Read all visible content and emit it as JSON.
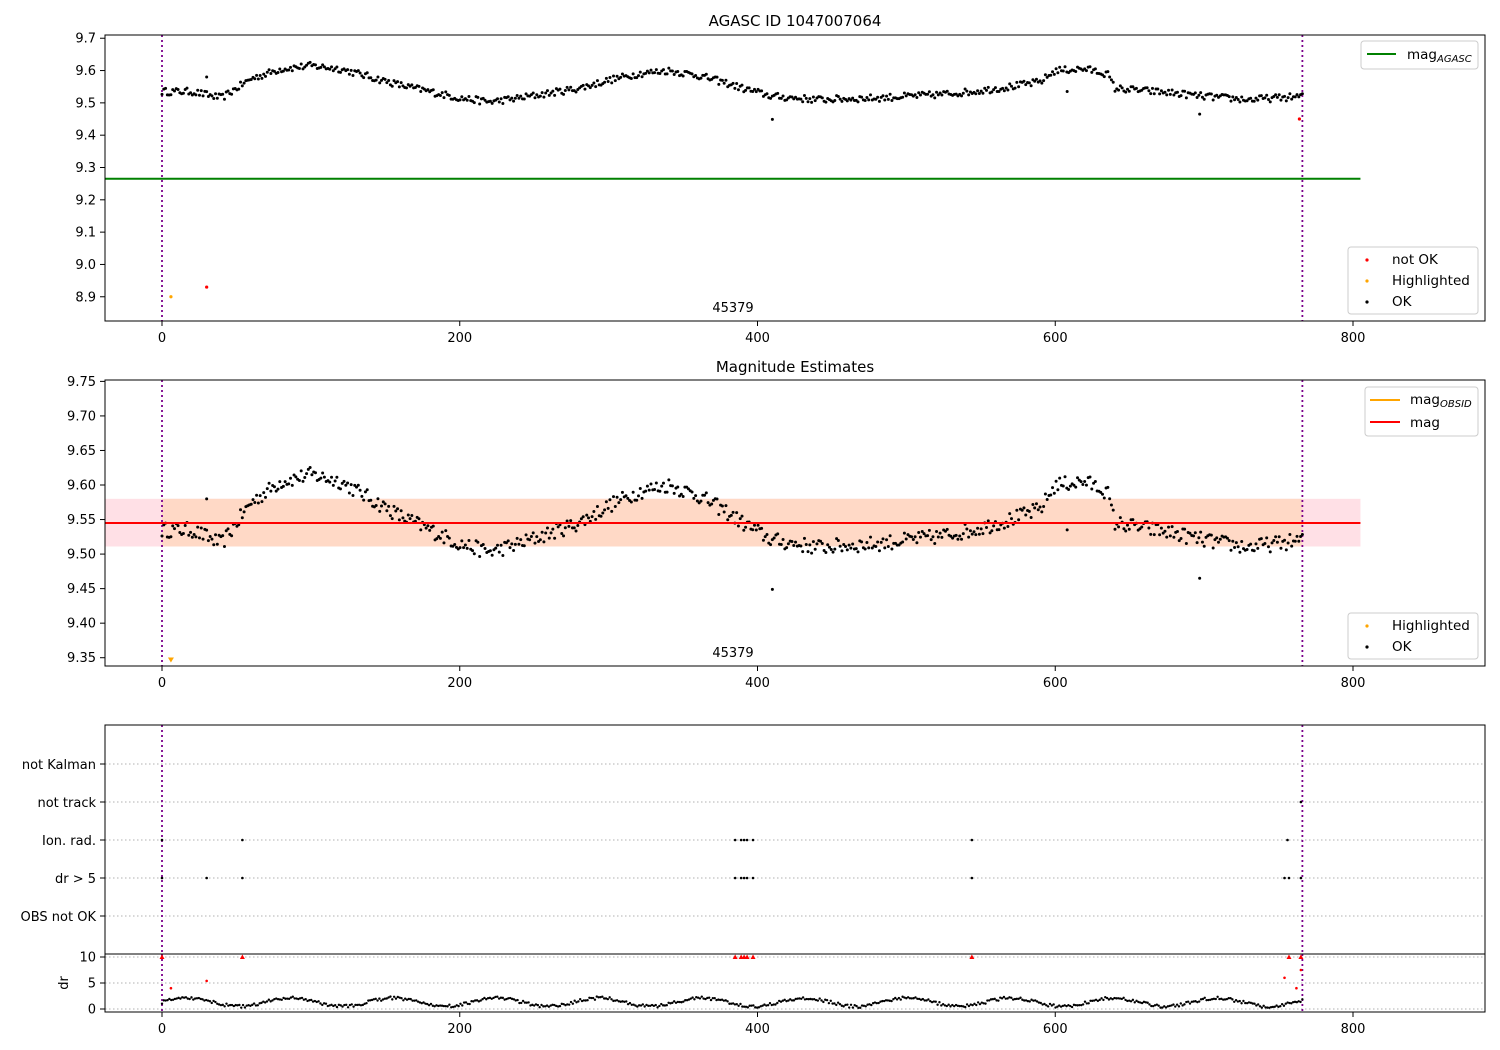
{
  "chart_data": [
    {
      "type": "scatter",
      "title": "AGASC ID 1047007064",
      "xlim": [
        -38,
        892
      ],
      "ylim": [
        8.825,
        9.71
      ],
      "xticks": [
        "0",
        "200",
        "400",
        "600",
        "800"
      ],
      "yticks": [
        "9.7",
        "9.6",
        "9.5",
        "9.4",
        "9.3",
        "9.2",
        "9.1",
        "9.0",
        "8.9"
      ],
      "obsid_label": "45379",
      "obs_bounds": [
        0,
        766
      ],
      "hlines": [
        {
          "name": "mag_AGASC",
          "y": 9.265,
          "x": [
            -38,
            805
          ],
          "color": "#008000"
        }
      ],
      "markers": [
        {
          "label": "not OK",
          "color": "#ff0000"
        },
        {
          "label": "Highlighted",
          "color": "#ffa500"
        },
        {
          "label": "OK",
          "color": "#000000"
        }
      ],
      "special_points": [
        {
          "x": 6,
          "y": 8.9,
          "color": "#ffa500"
        },
        {
          "x": 30,
          "y": 8.93,
          "color": "#ff0000"
        },
        {
          "x": 764,
          "y": 9.45,
          "color": "#ff0000"
        }
      ],
      "legend_upper": {
        "label": "mag",
        "sub": "AGASC",
        "color": "#008000"
      },
      "legend_lower": [
        "not OK",
        "Highlighted",
        "OK"
      ],
      "series_ok": {
        "name": "OK",
        "x_range": [
          0,
          766
        ],
        "n": 640,
        "color": "#000000"
      }
    },
    {
      "type": "scatter",
      "title": "Magnitude Estimates",
      "xlim": [
        -38,
        892
      ],
      "ylim": [
        9.338,
        9.752
      ],
      "xticks": [
        "0",
        "200",
        "400",
        "600",
        "800"
      ],
      "yticks": [
        "9.75",
        "9.70",
        "9.65",
        "9.60",
        "9.55",
        "9.50",
        "9.45",
        "9.40",
        "9.35"
      ],
      "obsid_label": "45379",
      "obs_bounds": [
        0,
        766
      ],
      "mag": 9.545,
      "band_outer": [
        9.511,
        9.58
      ],
      "band_inner_x": [
        0,
        766
      ],
      "hlines": [
        {
          "name": "mag",
          "y": 9.545,
          "color": "#ff0000"
        }
      ],
      "legend_upper": [
        {
          "label": "mag",
          "sub": "OBSID",
          "color": "#ffa500"
        },
        {
          "label": "mag",
          "sub": "",
          "color": "#ff0000"
        }
      ],
      "legend_lower": [
        "Highlighted",
        "OK"
      ],
      "special_points": [
        {
          "x": 6,
          "y": 9.346,
          "color": "#ffa500"
        }
      ]
    },
    {
      "type": "scatter",
      "title": "",
      "ylabels": [
        "not Kalman",
        "not track",
        "Ion. rad.",
        "dr > 5",
        "OBS not OK"
      ],
      "xticks": [
        "0",
        "200",
        "400",
        "600",
        "800"
      ],
      "flags": {
        "Ion. rad.": [
          0,
          54,
          385,
          389,
          391,
          393,
          397,
          544,
          756
        ],
        "dr > 5": [
          0,
          30,
          54,
          385,
          389,
          391,
          393,
          397,
          544,
          754,
          757,
          765
        ],
        "not track": [
          765
        ]
      }
    },
    {
      "type": "scatter",
      "title": "",
      "ylabel": "dr",
      "ylim": [
        0,
        10
      ],
      "yticks": [
        "10",
        "5",
        "0"
      ],
      "xticks": [
        "0",
        "200",
        "400",
        "600",
        "800"
      ],
      "red_points": [
        {
          "x": 0,
          "y": 10
        },
        {
          "x": 6,
          "y": 4
        },
        {
          "x": 30,
          "y": 5.4
        },
        {
          "x": 54,
          "y": 10
        },
        {
          "x": 385,
          "y": 10
        },
        {
          "x": 389,
          "y": 10
        },
        {
          "x": 391,
          "y": 10
        },
        {
          "x": 393,
          "y": 10
        },
        {
          "x": 397,
          "y": 10
        },
        {
          "x": 544,
          "y": 10
        },
        {
          "x": 754,
          "y": 6
        },
        {
          "x": 757,
          "y": 10
        },
        {
          "x": 762,
          "y": 4
        },
        {
          "x": 765,
          "y": 7.5
        },
        {
          "x": 765,
          "y": 10
        }
      ]
    }
  ]
}
